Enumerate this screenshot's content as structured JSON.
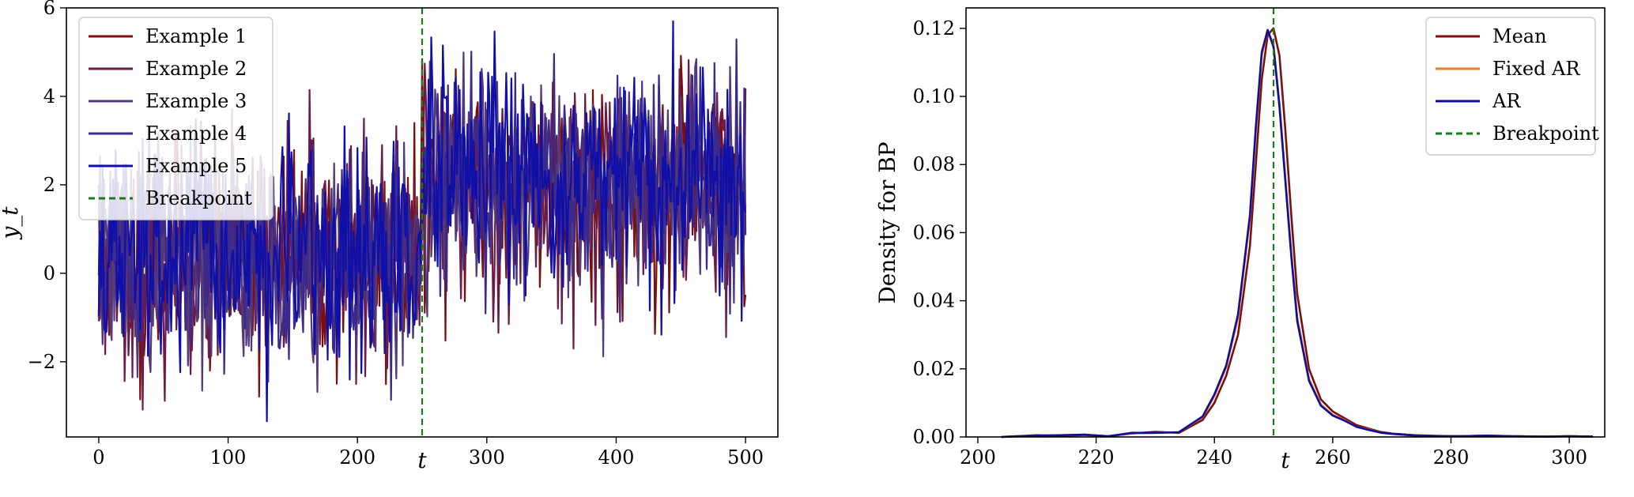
{
  "chart_data": [
    {
      "type": "line",
      "title": "",
      "xlabel": "t",
      "ylabel": "y_t",
      "xlim": [
        -25,
        525
      ],
      "ylim": [
        -3.7,
        6.0
      ],
      "xticks": [
        0,
        100,
        200,
        300,
        400,
        500
      ],
      "xtick_labels": [
        "0",
        "100",
        "200",
        "300",
        "400",
        "500"
      ],
      "yticks": [
        -2,
        0,
        2,
        4,
        6
      ],
      "ytick_labels": [
        "−2",
        "0",
        "2",
        "4",
        "6"
      ],
      "grid": false,
      "legend_position": "top-left",
      "breakpoint": 250,
      "series": [
        {
          "name": "Example 1",
          "color": "#7a0f0f",
          "seed": 11
        },
        {
          "name": "Example 2",
          "color": "#6b1a4a",
          "seed": 23
        },
        {
          "name": "Example 3",
          "color": "#533a7b",
          "seed": 37
        },
        {
          "name": "Example 4",
          "color": "#3b2a8c",
          "seed": 51
        },
        {
          "name": "Example 5",
          "color": "#1010a8",
          "seed": 67
        }
      ],
      "breakpoint_line": {
        "name": "Breakpoint",
        "color": "#1a7a1a"
      },
      "regime": {
        "before_mean": 0.3,
        "after_mean": 2.0,
        "std": 1.25
      }
    },
    {
      "type": "line",
      "title": "",
      "xlabel": "t",
      "ylabel": "Density for BP",
      "xlim": [
        198,
        306
      ],
      "ylim": [
        0,
        0.126
      ],
      "xticks": [
        200,
        220,
        240,
        260,
        280,
        300
      ],
      "xtick_labels": [
        "200",
        "220",
        "240",
        "260",
        "280",
        "300"
      ],
      "yticks": [
        0.0,
        0.02,
        0.04,
        0.06,
        0.08,
        0.1,
        0.12
      ],
      "ytick_labels": [
        "0.00",
        "0.02",
        "0.04",
        "0.06",
        "0.08",
        "0.10",
        "0.12"
      ],
      "grid": false,
      "legend_position": "top-right",
      "breakpoint": 250,
      "series": [
        {
          "name": "Mean",
          "color": "#7a0f0f",
          "x": [
            204,
            210,
            214,
            218,
            222,
            226,
            230,
            234,
            238,
            240,
            242,
            244,
            246,
            247,
            248,
            249,
            250,
            251,
            252,
            253,
            254,
            256,
            258,
            260,
            262,
            264,
            266,
            268,
            270,
            274,
            278,
            282,
            286,
            290,
            296,
            300,
            304
          ],
          "y": [
            0.0,
            0.0005,
            0.0003,
            0.0006,
            0.0002,
            0.001,
            0.0015,
            0.0012,
            0.005,
            0.01,
            0.018,
            0.03,
            0.056,
            0.08,
            0.105,
            0.118,
            0.12,
            0.112,
            0.09,
            0.065,
            0.042,
            0.02,
            0.011,
            0.0075,
            0.0055,
            0.0035,
            0.0025,
            0.0015,
            0.001,
            0.0005,
            0.0003,
            0.0002,
            0.0004,
            0.0002,
            0.0001,
            0.0002,
            0.0001
          ]
        },
        {
          "name": "Fixed AR",
          "color": "#ee7b22",
          "x": [
            204,
            210,
            214,
            218,
            222,
            226,
            230,
            234,
            238,
            240,
            242,
            244,
            246,
            247,
            248,
            249,
            250,
            251,
            252,
            253,
            254,
            256,
            258,
            260,
            262,
            264,
            266,
            268,
            270,
            274,
            278,
            282,
            286,
            290,
            296,
            300,
            304
          ],
          "y": [
            0.0,
            0.0004,
            0.0005,
            0.0007,
            0.0002,
            0.0011,
            0.0012,
            0.0014,
            0.0058,
            0.012,
            0.0205,
            0.035,
            0.064,
            0.09,
            0.112,
            0.1195,
            0.115,
            0.098,
            0.076,
            0.054,
            0.035,
            0.017,
            0.0095,
            0.0065,
            0.005,
            0.003,
            0.0022,
            0.0013,
            0.0009,
            0.0004,
            0.0002,
            0.0002,
            0.0004,
            0.0002,
            0.0001,
            0.0002,
            0.0001
          ]
        },
        {
          "name": "AR",
          "color": "#0d0d9e",
          "x": [
            204,
            210,
            214,
            218,
            222,
            226,
            230,
            234,
            238,
            240,
            242,
            244,
            246,
            247,
            248,
            249,
            250,
            251,
            252,
            253,
            254,
            256,
            258,
            260,
            262,
            264,
            266,
            268,
            270,
            274,
            278,
            282,
            286,
            290,
            296,
            300,
            304
          ],
          "y": [
            0.0,
            0.0004,
            0.0005,
            0.0007,
            0.0002,
            0.0012,
            0.0012,
            0.0014,
            0.006,
            0.0125,
            0.021,
            0.036,
            0.065,
            0.091,
            0.113,
            0.1195,
            0.1145,
            0.097,
            0.075,
            0.053,
            0.034,
            0.0165,
            0.0092,
            0.0063,
            0.0048,
            0.003,
            0.0021,
            0.0013,
            0.0009,
            0.0004,
            0.0002,
            0.0002,
            0.0004,
            0.0002,
            0.0001,
            0.0002,
            0.0001
          ]
        }
      ],
      "breakpoint_line": {
        "name": "Breakpoint",
        "color": "#1a7a1a"
      }
    }
  ]
}
